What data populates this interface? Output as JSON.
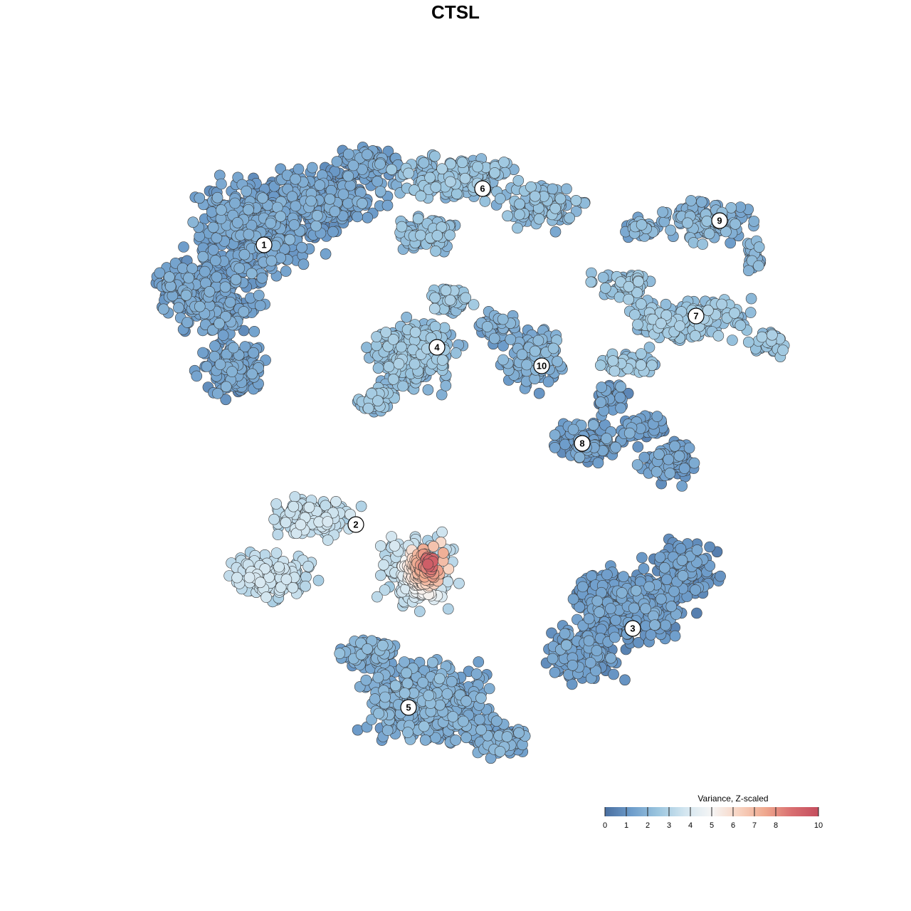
{
  "chart_data": {
    "type": "scatter",
    "title": "CTSL",
    "color_scale": {
      "title": "Variance, Z-scaled",
      "min": 0,
      "max": 10,
      "ticks": [
        0,
        1,
        2,
        3,
        4,
        5,
        6,
        7,
        8,
        10
      ],
      "colors": [
        "#4a6fa0",
        "#6e9dcb",
        "#9cc6df",
        "#d3e6f0",
        "#f5f5f5",
        "#f8d4c2",
        "#efa88e",
        "#d96e70",
        "#c44e5e"
      ]
    },
    "clusters": [
      {
        "label": "1",
        "mean_value": 1.3
      },
      {
        "label": "2",
        "mean_value": 3.2
      },
      {
        "label": "3",
        "mean_value": 1.1
      },
      {
        "label": "4",
        "mean_value": 2.2
      },
      {
        "label": "5",
        "mean_value": 1.6
      },
      {
        "label": "6",
        "mean_value": 2.1
      },
      {
        "label": "7",
        "mean_value": 2.3
      },
      {
        "label": "8",
        "mean_value": 1.2
      },
      {
        "label": "9",
        "mean_value": 1.8
      },
      {
        "label": "10",
        "mean_value": 1.6
      }
    ],
    "hotspot": {
      "cluster": "2",
      "peak_value": 9.5
    },
    "xlabel": "",
    "ylabel": "",
    "grid": false,
    "legend_placement": "bottom-right"
  }
}
